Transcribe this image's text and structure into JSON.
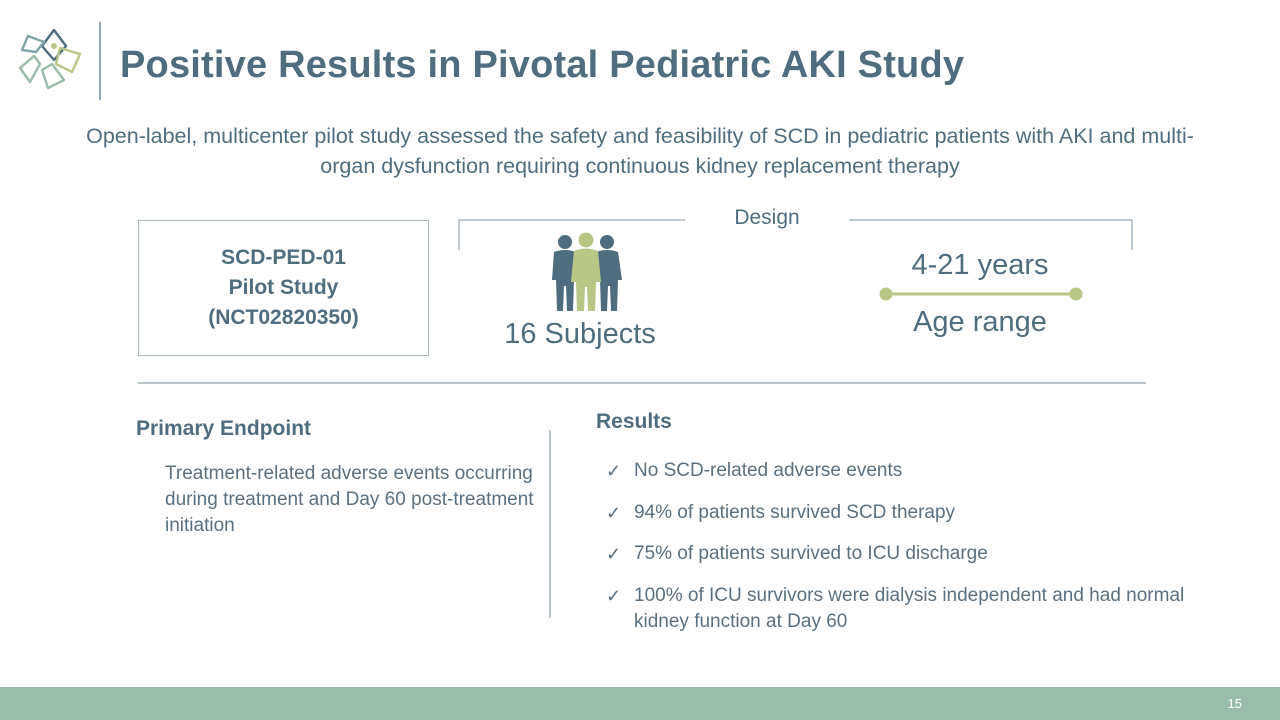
{
  "header": {
    "title": "Positive Results in Pivotal Pediatric AKI Study",
    "logo_icon": "flower-logo-icon"
  },
  "subtitle": "Open-label, multicenter pilot study assessed the safety and feasibility of SCD in pediatric patients with AKI and multi-organ dysfunction requiring continuous kidney replacement therapy",
  "study_box": {
    "line1": "SCD-PED-01",
    "line2": "Pilot Study",
    "line3": "(NCT02820350)"
  },
  "design": {
    "label": "Design",
    "subjects": "16 Subjects",
    "age_value": "4-21 years",
    "age_label": "Age range"
  },
  "primary_endpoint": {
    "heading": "Primary Endpoint",
    "text": "Treatment-related adverse events occurring during treatment and Day 60 post-treatment initiation"
  },
  "results": {
    "heading": "Results",
    "check_glyph": "✓",
    "items": [
      "No SCD-related adverse events",
      "94% of patients survived SCD therapy",
      "75% of patients survived to ICU discharge",
      "100% of ICU survivors were dialysis independent and had normal kidney function at Day 60"
    ]
  },
  "footer": {
    "page_number": "15"
  },
  "colors": {
    "title": "#4f6d7f",
    "accent_green": "#b8c786",
    "people_dark": "#4f6d7f",
    "footer_bar": "#9bbcab"
  }
}
